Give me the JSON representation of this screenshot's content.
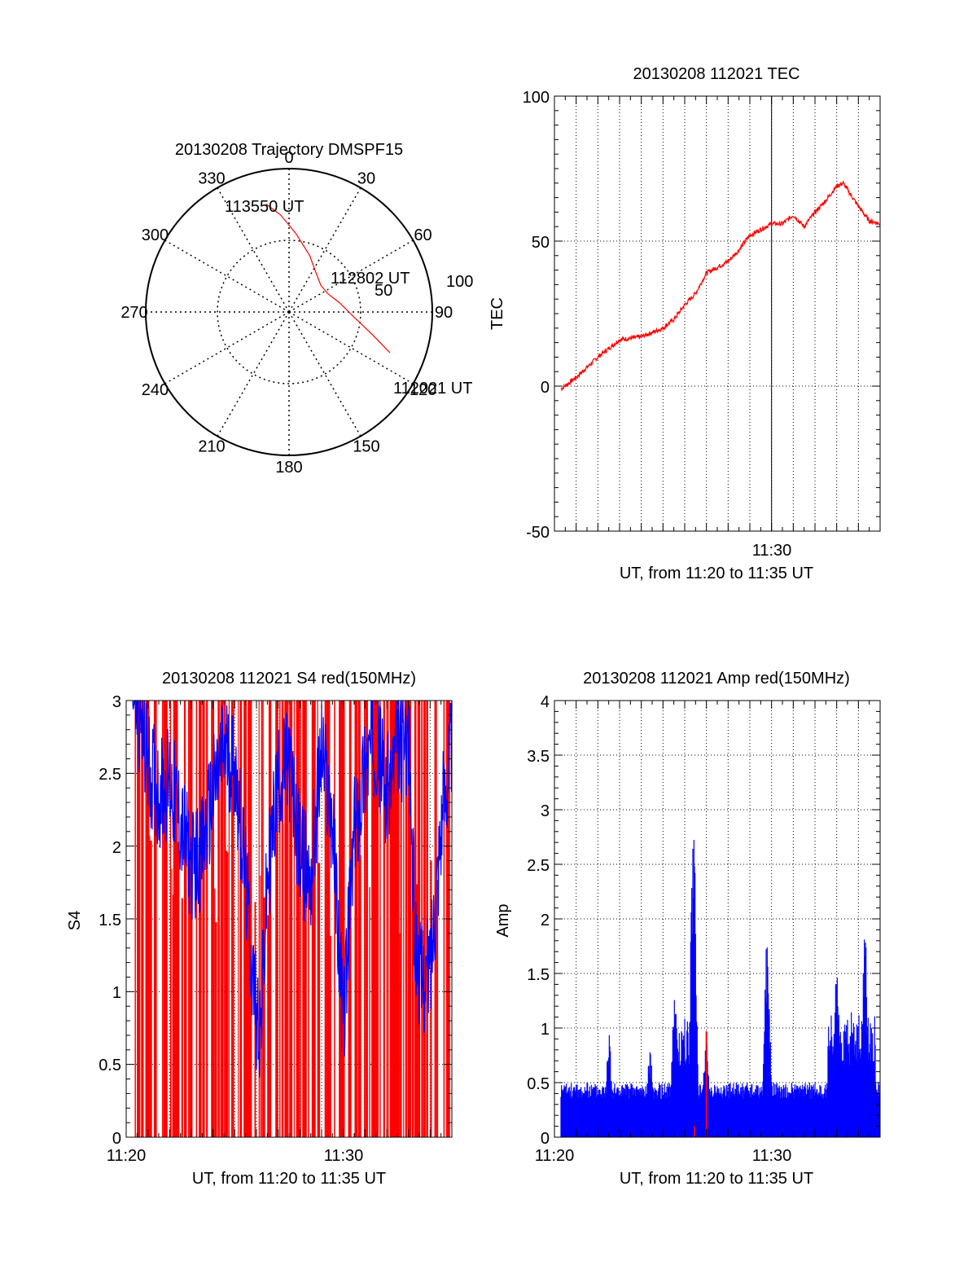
{
  "chart_data": [
    {
      "type": "polar-trajectory",
      "title": "20130208 Trajectory DMSPF15",
      "angle_labels": [
        "0",
        "30",
        "60",
        "90",
        "120",
        "150",
        "180",
        "210",
        "240",
        "270",
        "300",
        "330"
      ],
      "radius_labels": [
        "50",
        "100"
      ],
      "radius_max": 100,
      "annotations": [
        "113550 UT",
        "112802 UT",
        "112021 UT"
      ],
      "trajectory": [
        {
          "az": 112,
          "r": 76
        },
        {
          "az": 105,
          "r": 60
        },
        {
          "az": 95,
          "r": 46
        },
        {
          "az": 80,
          "r": 36
        },
        {
          "az": 65,
          "r": 30
        },
        {
          "az": 50,
          "r": 29
        },
        {
          "az": 35,
          "r": 33
        },
        {
          "az": 20,
          "r": 42
        },
        {
          "az": 5,
          "r": 55
        },
        {
          "az": -5,
          "r": 68
        },
        {
          "az": -10,
          "r": 74
        },
        {
          "az": -12,
          "r": 77
        }
      ],
      "trajectory_color": "#ff0000"
    },
    {
      "type": "line",
      "title": "20130208 112021 TEC",
      "xlabel": "UT, from 11:20 to 11:35 UT",
      "ylabel": "TEC",
      "xlim": [
        0,
        15
      ],
      "ylim": [
        -50,
        100
      ],
      "yticks": [
        "100",
        "50",
        "0",
        "-50"
      ],
      "xticks": [
        {
          "value": 10,
          "label": "11:30"
        }
      ],
      "grid": true,
      "series": [
        {
          "color": "#ff0000",
          "x": [
            0.3,
            1,
            2,
            3,
            4,
            5,
            5.5,
            6,
            6.5,
            7,
            8,
            8.5,
            9,
            10,
            10.5,
            11,
            11.5,
            12,
            12.5,
            13,
            13.3,
            14,
            14.5,
            15
          ],
          "y": [
            -1,
            3,
            10,
            16,
            17,
            20,
            23,
            28,
            32,
            39,
            43,
            47,
            52,
            56,
            56,
            59,
            55,
            60,
            64,
            69,
            70,
            62,
            57,
            56
          ]
        }
      ]
    },
    {
      "type": "line",
      "title": "20130208 112021 S4 red(150MHz)",
      "xlabel": "UT, from 11:20 to 11:35 UT",
      "ylabel": "S4",
      "xlim": [
        0,
        15
      ],
      "ylim": [
        0,
        3
      ],
      "yticks": [
        "3",
        "2.5",
        "2",
        "1.5",
        "1",
        "0.5",
        "0"
      ],
      "xticks": [
        {
          "value": 0,
          "label": "11:20"
        },
        {
          "value": 10,
          "label": "11:30"
        }
      ],
      "grid": true,
      "series_colors": [
        "#ff0000",
        "#0000ff"
      ],
      "blue_envelope": {
        "x": [
          0.3,
          1,
          1.5,
          2,
          2.5,
          3,
          3.5,
          4,
          4.5,
          5,
          5.5,
          5.8,
          6,
          6.2,
          6.5,
          7,
          7.5,
          8,
          8.5,
          9,
          9.5,
          10,
          10.5,
          11,
          11.5,
          12,
          12.5,
          13,
          13.3,
          13.6,
          14,
          14.5,
          15
        ],
        "y": [
          3,
          2.4,
          2.2,
          2.3,
          2.0,
          1.7,
          1.8,
          2.2,
          2.5,
          2.4,
          1.6,
          1.0,
          0.7,
          0.6,
          1.6,
          2.3,
          2.4,
          1.8,
          1.6,
          2.5,
          2.0,
          0.6,
          1.9,
          2.4,
          2.6,
          2.2,
          2.5,
          2.6,
          1.2,
          0.9,
          1.0,
          2.0,
          2.6
        ]
      }
    },
    {
      "type": "bar",
      "title": "20130208 112021 Amp red(150MHz)",
      "xlabel": "UT, from 11:20 to 11:35 UT",
      "ylabel": "Amp",
      "xlim": [
        0,
        15
      ],
      "ylim": [
        0,
        4
      ],
      "yticks": [
        "4",
        "3.5",
        "3",
        "2.5",
        "2",
        "1.5",
        "1",
        "0.5",
        "0"
      ],
      "xticks": [
        {
          "value": 0,
          "label": "11:20"
        },
        {
          "value": 10,
          "label": "11:30"
        }
      ],
      "grid": true,
      "series_colors": [
        "#0000ff",
        "#ff0000"
      ],
      "peaks": [
        {
          "x": 2.5,
          "y": 0.95
        },
        {
          "x": 4.4,
          "y": 0.8
        },
        {
          "x": 5.9,
          "y": 1.0
        },
        {
          "x": 5.55,
          "y": 1.4
        },
        {
          "x": 6.4,
          "y": 2.85
        },
        {
          "x": 7.0,
          "y": 0.95
        },
        {
          "x": 9.8,
          "y": 1.78
        },
        {
          "x": 13.0,
          "y": 1.5
        },
        {
          "x": 14.3,
          "y": 1.8
        }
      ],
      "red_spikes": [
        {
          "x": 7.0,
          "y": 0.97
        },
        {
          "x": 6.45,
          "y": 0.1
        }
      ]
    }
  ]
}
